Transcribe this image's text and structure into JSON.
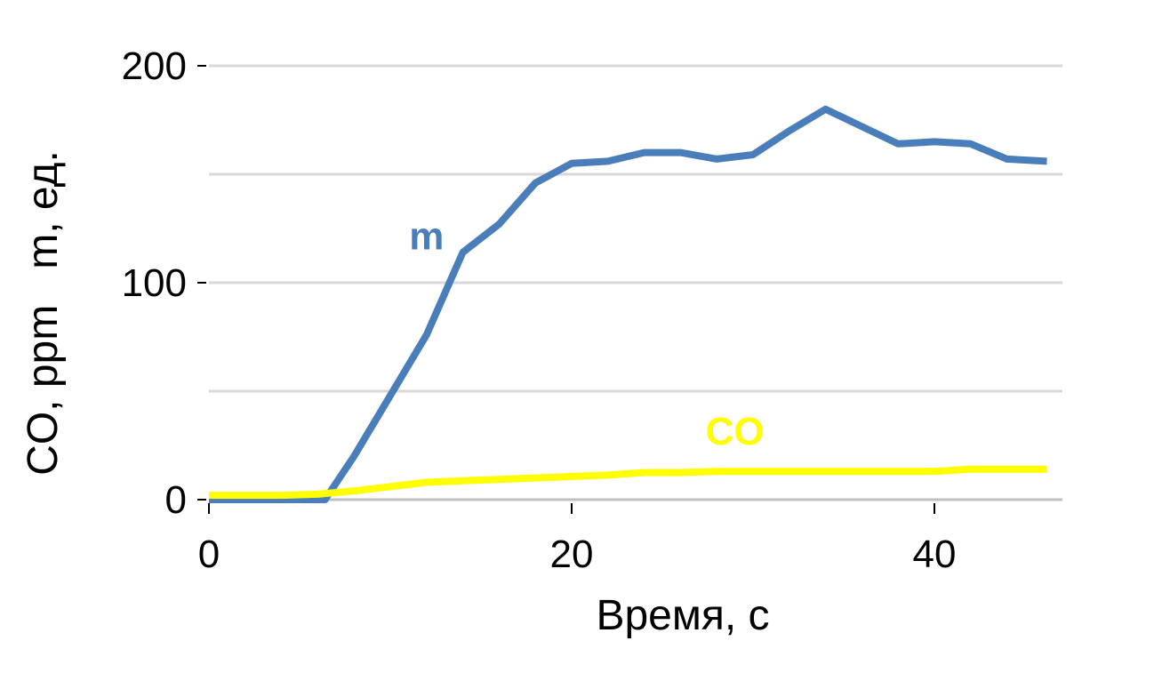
{
  "chart_data": {
    "type": "line",
    "xlabel": "Время, с",
    "ylabel": "CO, ppm   m, ед.",
    "xlim": [
      0,
      47
    ],
    "ylim": [
      0,
      200
    ],
    "x_ticks": [
      0,
      20,
      40
    ],
    "y_ticks": [
      0,
      100,
      200
    ],
    "y_grid": [
      0,
      50,
      100,
      150,
      200
    ],
    "grid": "horizontal",
    "series": [
      {
        "name": "m",
        "color": "#4a7ebb",
        "label_anchor": [
          12,
          122
        ],
        "points": [
          [
            0,
            0
          ],
          [
            2,
            0
          ],
          [
            4,
            0
          ],
          [
            6.4,
            0
          ],
          [
            8,
            20
          ],
          [
            10,
            48
          ],
          [
            12,
            76
          ],
          [
            14,
            114
          ],
          [
            16,
            127
          ],
          [
            18,
            146
          ],
          [
            20,
            155
          ],
          [
            22,
            156
          ],
          [
            24,
            160
          ],
          [
            26,
            160
          ],
          [
            28,
            157
          ],
          [
            30,
            159
          ],
          [
            32,
            170
          ],
          [
            34,
            180
          ],
          [
            36,
            172
          ],
          [
            38,
            164
          ],
          [
            40,
            165
          ],
          [
            42,
            164
          ],
          [
            44,
            157
          ],
          [
            46.2,
            156
          ]
        ]
      },
      {
        "name": "CO",
        "color": "#ffff00",
        "label_anchor": [
          29,
          32
        ],
        "points": [
          [
            0,
            2
          ],
          [
            2,
            2
          ],
          [
            4,
            2
          ],
          [
            6,
            2.5
          ],
          [
            8,
            4
          ],
          [
            10,
            6
          ],
          [
            12,
            8
          ],
          [
            14,
            8.7
          ],
          [
            16,
            9.3
          ],
          [
            18,
            10
          ],
          [
            20,
            10.7
          ],
          [
            22,
            11.3
          ],
          [
            24,
            12.5
          ],
          [
            26,
            12.5
          ],
          [
            28,
            13
          ],
          [
            30,
            13
          ],
          [
            32,
            13
          ],
          [
            34,
            13
          ],
          [
            36,
            13
          ],
          [
            38,
            13
          ],
          [
            40,
            13
          ],
          [
            42,
            14
          ],
          [
            44,
            14
          ],
          [
            46.2,
            14
          ]
        ]
      }
    ]
  }
}
